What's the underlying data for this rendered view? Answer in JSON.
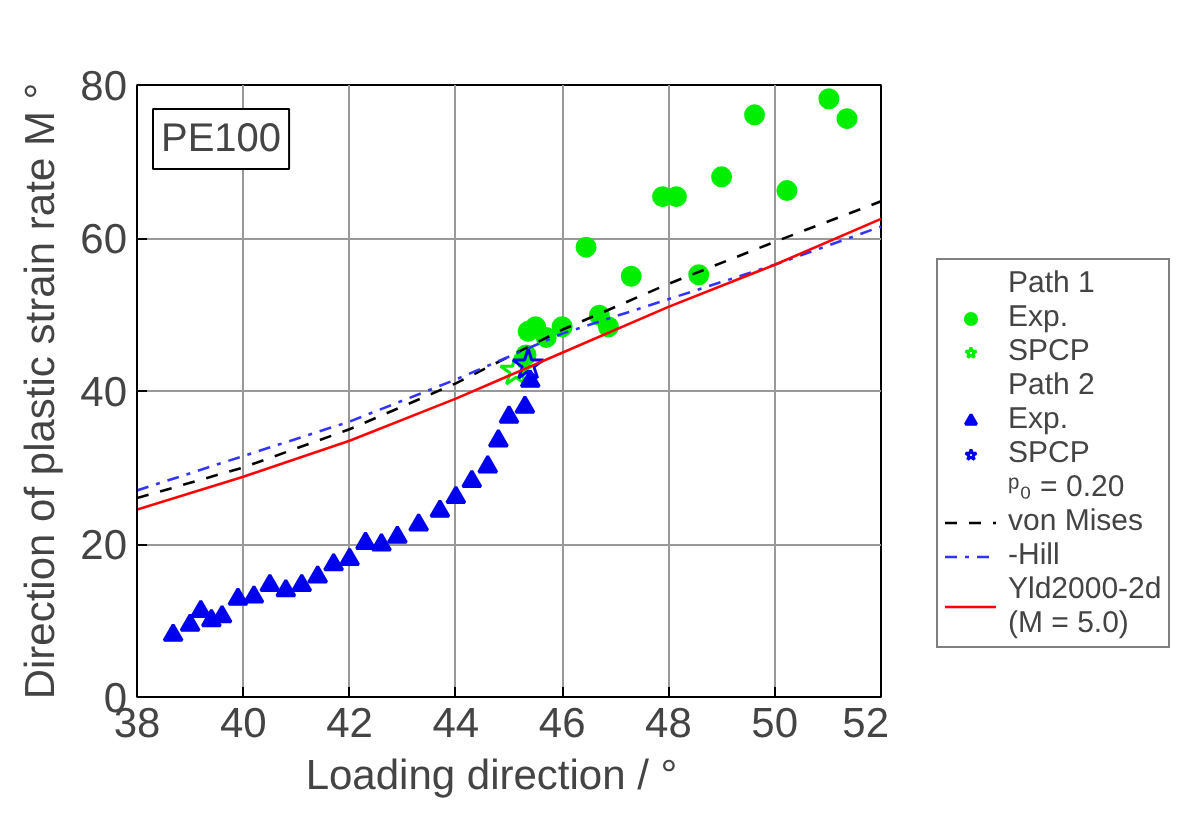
{
  "chart_data": {
    "type": "scatter",
    "xlabel": "Loading direction    / °",
    "ylabel": "Direction of plastic strain rate M °",
    "xlim": [
      38,
      52
    ],
    "ylim": [
      0,
      80
    ],
    "xticks": [
      38,
      40,
      42,
      44,
      46,
      48,
      50,
      52
    ],
    "yticks": [
      0,
      20,
      40,
      60,
      80
    ],
    "grid": true,
    "legend": "right",
    "annotations": [
      "PE100",
      "Path 1",
      "Path 2",
      "ᵖ₀ = 0.20"
    ],
    "series": [
      {
        "name": "Exp.",
        "marker": "circle",
        "color": "#00ee00",
        "x": [
          45.32,
          45.36,
          45.5,
          45.7,
          46.0,
          46.45,
          46.7,
          46.87,
          47.3,
          47.89,
          48.15,
          48.57,
          49.0,
          49.62,
          50.23,
          51.02,
          51.36
        ],
        "values": [
          44.7,
          47.8,
          48.4,
          47.0,
          48.4,
          58.8,
          49.9,
          48.4,
          55.0,
          65.4,
          65.4,
          55.2,
          68.0,
          76.1,
          66.2,
          78.2,
          75.6
        ]
      },
      {
        "name": "SPCP",
        "marker": "star",
        "color": "#00ee00",
        "x": [
          45.13
        ],
        "values": [
          42.6
        ]
      },
      {
        "name": "Exp.",
        "marker": "triangle",
        "color": "#0000ee",
        "x": [
          38.68,
          39.0,
          39.2,
          39.4,
          39.6,
          39.9,
          40.2,
          40.5,
          40.8,
          41.1,
          41.4,
          41.7,
          42.0,
          42.3,
          42.6,
          42.9,
          43.3,
          43.7,
          44.0,
          44.3,
          44.6,
          44.8,
          45.0,
          45.3,
          45.4
        ],
        "values": [
          8.1,
          9.4,
          11.2,
          10.0,
          10.5,
          12.8,
          13.1,
          14.6,
          13.9,
          14.6,
          15.7,
          17.3,
          18.0,
          20.1,
          19.9,
          20.9,
          22.5,
          24.3,
          26.1,
          28.2,
          30.1,
          33.5,
          36.6,
          37.9,
          41.3
        ]
      },
      {
        "name": "SPCP",
        "marker": "star",
        "color": "#0000ee",
        "x": [
          45.36
        ],
        "values": [
          43.4
        ]
      },
      {
        "name": "von Mises",
        "type": "line",
        "line_style": "dashed",
        "color": "#000000",
        "x": [
          38,
          40,
          42,
          44,
          46,
          48,
          50,
          52
        ],
        "values": [
          26,
          30,
          35,
          41,
          48,
          54,
          59.5,
          64.8
        ]
      },
      {
        "name": "-Hill",
        "type": "line",
        "line_style": "dashdot",
        "color": "#3333ff",
        "x": [
          38,
          40,
          42,
          44,
          46,
          48,
          50,
          52
        ],
        "values": [
          27,
          31.5,
          36,
          41.5,
          47.5,
          52,
          56.5,
          61.5
        ]
      },
      {
        "name": "Yld2000-2d\n(M = 5.0)",
        "type": "line",
        "line_style": "solid",
        "color": "#ff0000",
        "x": [
          38,
          40,
          42,
          44,
          46,
          48,
          50,
          52
        ],
        "values": [
          24.5,
          28.8,
          33.5,
          39,
          45,
          51,
          56.5,
          62.5
        ]
      }
    ]
  }
}
